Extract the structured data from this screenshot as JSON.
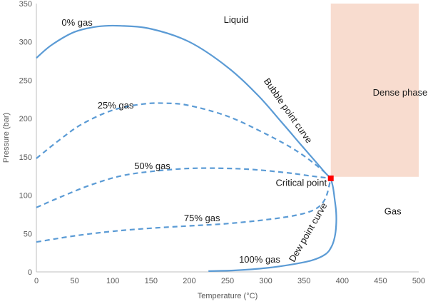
{
  "chart_data": {
    "type": "line",
    "title": "",
    "xlabel": "Temperature (°C)",
    "ylabel": "Pressure (bar)",
    "xlim": [
      0,
      500
    ],
    "ylim": [
      0,
      350
    ],
    "xticks": [
      0,
      50,
      100,
      150,
      200,
      250,
      300,
      350,
      400,
      450,
      500
    ],
    "yticks": [
      0,
      50,
      100,
      150,
      200,
      250,
      300,
      350
    ],
    "grid": false,
    "line_color": "#5b9bd5",
    "dense_phase_color": "#f8dccf",
    "critical_point_color": "#ff0000",
    "critical_point": {
      "x": 385,
      "y": 122
    },
    "dense_phase_region": {
      "x": [
        385,
        500
      ],
      "y": [
        124,
        350
      ]
    },
    "series": [
      {
        "name": "Bubble point curve",
        "style": "solid",
        "x": [
          0,
          20,
          50,
          80,
          110,
          150,
          200,
          250,
          290,
          320,
          345,
          365,
          378,
          385
        ],
        "y": [
          279,
          296,
          313,
          320,
          321,
          317,
          300,
          267,
          230,
          196,
          167,
          144,
          129,
          122
        ]
      },
      {
        "name": "Dew point curve",
        "style": "solid",
        "x": [
          385,
          388,
          390,
          392,
          392,
          390,
          386,
          378,
          360,
          330,
          300,
          260,
          225
        ],
        "y": [
          122,
          110,
          95,
          78,
          60,
          45,
          33,
          23,
          15,
          9,
          5,
          2,
          1
        ]
      },
      {
        "name": "25% gas",
        "style": "dashed",
        "x": [
          0,
          30,
          60,
          100,
          140,
          170,
          200,
          250,
          300,
          340,
          370,
          385
        ],
        "y": [
          148,
          172,
          193,
          211,
          219,
          220,
          217,
          203,
          180,
          158,
          136,
          122
        ]
      },
      {
        "name": "50% gas",
        "style": "dashed",
        "x": [
          0,
          30,
          70,
          110,
          150,
          200,
          250,
          290,
          330,
          360,
          385
        ],
        "y": [
          84,
          97,
          113,
          125,
          131,
          135,
          135,
          133,
          129,
          125,
          122
        ]
      },
      {
        "name": "75% gas",
        "style": "dashed",
        "x": [
          0,
          50,
          100,
          150,
          200,
          250,
          300,
          340,
          365,
          378,
          385
        ],
        "y": [
          39,
          47,
          53,
          57,
          60,
          63,
          68,
          74,
          82,
          96,
          122
        ]
      }
    ],
    "annotations": [
      {
        "text": "Liquid",
        "kind": "region",
        "x": 245,
        "y": 325
      },
      {
        "text": "Dense phase",
        "kind": "region",
        "x": 440,
        "y": 230
      },
      {
        "text": "Gas",
        "kind": "region",
        "x": 455,
        "y": 75
      },
      {
        "text": "Critical point",
        "kind": "point",
        "x": 313,
        "y": 112
      },
      {
        "text": "0% gas",
        "kind": "curve",
        "x": 33,
        "y": 321
      },
      {
        "text": "25% gas",
        "kind": "curve",
        "x": 80,
        "y": 213
      },
      {
        "text": "50% gas",
        "kind": "curve",
        "x": 128,
        "y": 134
      },
      {
        "text": "75% gas",
        "kind": "curve",
        "x": 193,
        "y": 66
      },
      {
        "text": "100% gas",
        "kind": "curve",
        "x": 265,
        "y": 12
      },
      {
        "text": "Bubble point curve",
        "kind": "curve",
        "x": 297,
        "y": 249,
        "rotate": 55
      },
      {
        "text": "Dew point curve",
        "kind": "curve",
        "x": 337,
        "y": 12,
        "rotate": -60
      }
    ]
  }
}
